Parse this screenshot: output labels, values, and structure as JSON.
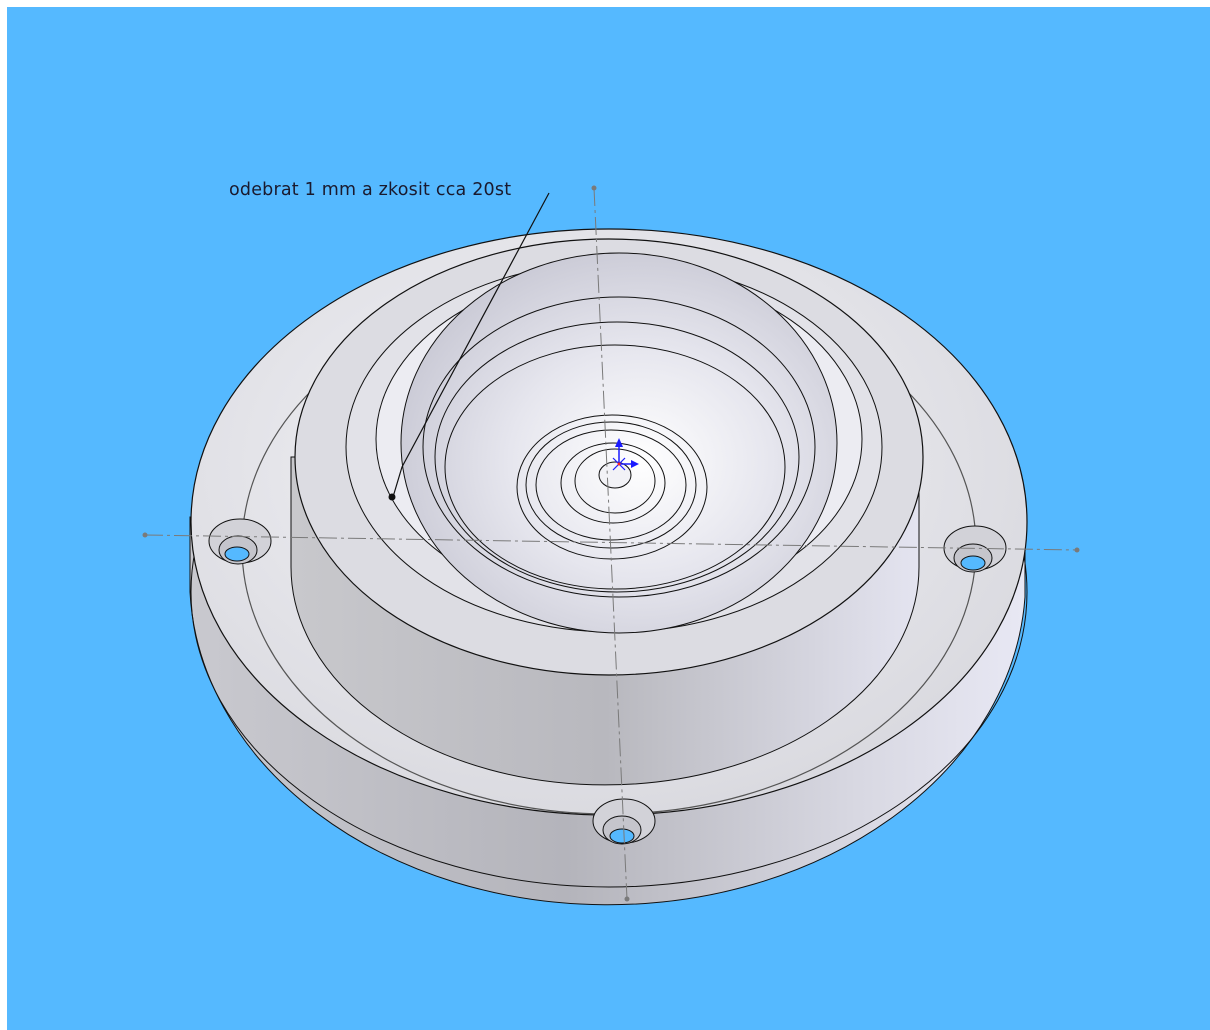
{
  "annotation": {
    "text": "odebrat 1 mm a zkosit cca 20st"
  },
  "colors": {
    "viewport_background": "#55b9ff",
    "part_light": "#e8e8ee",
    "part_shade": "#bdbdc4",
    "edge": "#111111",
    "centerline": "#7a7a7a",
    "triad_blue": "#1a1aff",
    "triad_red": "#ff2020"
  },
  "icons": {
    "origin": "origin-triad-icon"
  }
}
